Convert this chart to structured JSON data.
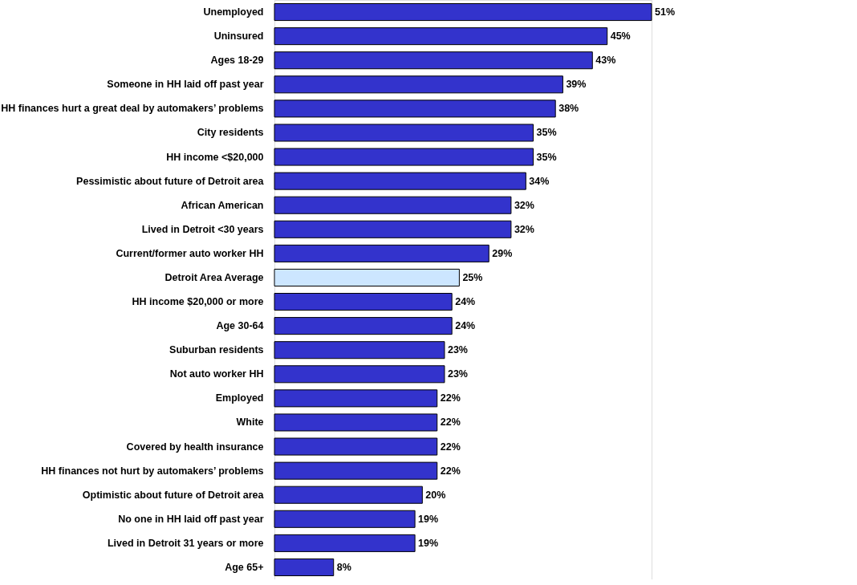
{
  "chart_data": {
    "type": "bar",
    "orientation": "horizontal",
    "categories": [
      "Unemployed",
      "Uninsured",
      "Ages 18-29",
      "Someone in HH laid off past year",
      "HH finances hurt a great deal by automakers’ problems",
      "City residents",
      "HH income <$20,000",
      "Pessimistic about future of Detroit area",
      "African American",
      "Lived in Detroit <30 years",
      "Current/former auto worker HH",
      "Detroit Area Average",
      "HH income $20,000 or more",
      "Age 30-64",
      "Suburban residents",
      "Not auto worker HH",
      "Employed",
      "White",
      "Covered by health insurance",
      "HH finances not hurt by automakers’ problems",
      "Optimistic about future of Detroit area",
      "No one in HH laid off past year",
      "Lived in Detroit 31 years or more",
      "Age 65+"
    ],
    "values": [
      51,
      45,
      43,
      39,
      38,
      35,
      35,
      34,
      32,
      32,
      29,
      25,
      24,
      24,
      23,
      23,
      22,
      22,
      22,
      22,
      20,
      19,
      19,
      8
    ],
    "value_labels": [
      "51%",
      "45%",
      "43%",
      "39%",
      "38%",
      "35%",
      "35%",
      "34%",
      "32%",
      "32%",
      "29%",
      "25%",
      "24%",
      "24%",
      "23%",
      "23%",
      "22%",
      "22%",
      "22%",
      "22%",
      "20%",
      "19%",
      "19%",
      "8%"
    ],
    "colors": [
      "#3333cc",
      "#3333cc",
      "#3333cc",
      "#3333cc",
      "#3333cc",
      "#3333cc",
      "#3333cc",
      "#3333cc",
      "#3333cc",
      "#3333cc",
      "#3333cc",
      "#cce6ff",
      "#3333cc",
      "#3333cc",
      "#3333cc",
      "#3333cc",
      "#3333cc",
      "#3333cc",
      "#3333cc",
      "#3333cc",
      "#3333cc",
      "#3333cc",
      "#3333cc",
      "#3333cc"
    ]
  }
}
